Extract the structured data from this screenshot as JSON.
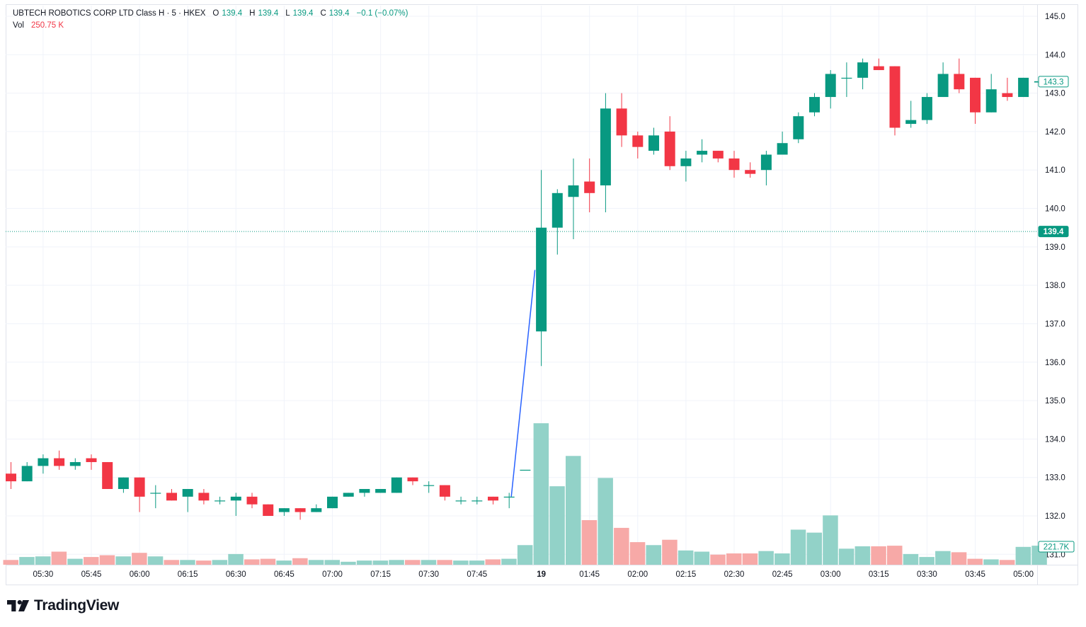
{
  "legend": {
    "symbol": "UBTECH ROBOTICS CORP LTD Class H · 5 · HKEX",
    "o_label": "O",
    "o_value": "139.4",
    "h_label": "H",
    "h_value": "139.4",
    "l_label": "L",
    "l_value": "139.4",
    "c_label": "C",
    "c_value": "139.4",
    "change": "−0.1 (−0.07%)",
    "vol_label": "Vol",
    "vol_value": "250.75 K"
  },
  "brand": {
    "name": "TradingView"
  },
  "colors": {
    "up": "#089981",
    "down": "#f23645",
    "vol_up": "#92d2c8",
    "vol_down": "#f7a9a7",
    "grid": "#f0f3fa",
    "text": "#131722",
    "annotation_line": "#2962ff"
  },
  "chart_data": {
    "type": "candlestick",
    "title": "UBTECH ROBOTICS CORP LTD Class H · 5 · HKEX",
    "interval": "5 min",
    "ylim": [
      130.7,
      145.3
    ],
    "y_ticks": [
      "131.0",
      "132.0",
      "133.0",
      "134.0",
      "135.0",
      "136.0",
      "137.0",
      "138.0",
      "139.0",
      "140.0",
      "141.0",
      "142.0",
      "143.0",
      "144.0",
      "145.0"
    ],
    "x_ticks": [
      {
        "label": "05:30",
        "index": 2
      },
      {
        "label": "05:45",
        "index": 5
      },
      {
        "label": "06:00",
        "index": 8
      },
      {
        "label": "06:15",
        "index": 11
      },
      {
        "label": "06:30",
        "index": 14
      },
      {
        "label": "06:45",
        "index": 17
      },
      {
        "label": "07:00",
        "index": 20
      },
      {
        "label": "07:15",
        "index": 23
      },
      {
        "label": "07:30",
        "index": 26
      },
      {
        "label": "07:45",
        "index": 29
      },
      {
        "label": "19",
        "index": 33
      },
      {
        "label": "01:45",
        "index": 36
      },
      {
        "label": "02:00",
        "index": 39
      },
      {
        "label": "02:15",
        "index": 42
      },
      {
        "label": "02:30",
        "index": 45
      },
      {
        "label": "02:45",
        "index": 48
      },
      {
        "label": "03:00",
        "index": 51
      },
      {
        "label": "03:15",
        "index": 54
      },
      {
        "label": "03:30",
        "index": 57
      },
      {
        "label": "03:45",
        "index": 60
      },
      {
        "label": "05:00",
        "index": 63
      }
    ],
    "candles": [
      {
        "o": 133.1,
        "h": 133.4,
        "l": 132.7,
        "c": 132.9,
        "v": 8
      },
      {
        "o": 132.9,
        "h": 133.4,
        "l": 132.9,
        "c": 133.3,
        "v": 13
      },
      {
        "o": 133.3,
        "h": 133.6,
        "l": 133.1,
        "c": 133.5,
        "v": 14
      },
      {
        "o": 133.5,
        "h": 133.7,
        "l": 133.2,
        "c": 133.3,
        "v": 22
      },
      {
        "o": 133.3,
        "h": 133.5,
        "l": 133.2,
        "c": 133.4,
        "v": 10
      },
      {
        "o": 133.5,
        "h": 133.6,
        "l": 133.2,
        "c": 133.4,
        "v": 13
      },
      {
        "o": 133.4,
        "h": 133.4,
        "l": 132.7,
        "c": 132.7,
        "v": 16
      },
      {
        "o": 132.7,
        "h": 133.0,
        "l": 132.6,
        "c": 133.0,
        "v": 14
      },
      {
        "o": 133.0,
        "h": 133.0,
        "l": 132.1,
        "c": 132.5,
        "v": 20
      },
      {
        "o": 132.6,
        "h": 132.8,
        "l": 132.2,
        "c": 132.6,
        "v": 14
      },
      {
        "o": 132.6,
        "h": 132.7,
        "l": 132.4,
        "c": 132.4,
        "v": 8
      },
      {
        "o": 132.5,
        "h": 132.7,
        "l": 132.1,
        "c": 132.7,
        "v": 8
      },
      {
        "o": 132.6,
        "h": 132.7,
        "l": 132.3,
        "c": 132.4,
        "v": 7
      },
      {
        "o": 132.4,
        "h": 132.5,
        "l": 132.3,
        "c": 132.4,
        "v": 8
      },
      {
        "o": 132.4,
        "h": 132.6,
        "l": 132.0,
        "c": 132.5,
        "v": 18
      },
      {
        "o": 132.5,
        "h": 132.6,
        "l": 132.2,
        "c": 132.3,
        "v": 9
      },
      {
        "o": 132.3,
        "h": 132.3,
        "l": 132.0,
        "c": 132.0,
        "v": 10
      },
      {
        "o": 132.1,
        "h": 132.2,
        "l": 132.0,
        "c": 132.2,
        "v": 7
      },
      {
        "o": 132.2,
        "h": 132.2,
        "l": 131.9,
        "c": 132.1,
        "v": 11
      },
      {
        "o": 132.1,
        "h": 132.3,
        "l": 132.1,
        "c": 132.2,
        "v": 8
      },
      {
        "o": 132.2,
        "h": 132.5,
        "l": 132.2,
        "c": 132.5,
        "v": 8
      },
      {
        "o": 132.5,
        "h": 132.6,
        "l": 132.5,
        "c": 132.6,
        "v": 5
      },
      {
        "o": 132.6,
        "h": 132.7,
        "l": 132.5,
        "c": 132.7,
        "v": 7
      },
      {
        "o": 132.6,
        "h": 132.7,
        "l": 132.6,
        "c": 132.7,
        "v": 7
      },
      {
        "o": 132.6,
        "h": 133.0,
        "l": 132.6,
        "c": 133.0,
        "v": 8
      },
      {
        "o": 133.0,
        "h": 133.0,
        "l": 132.8,
        "c": 132.9,
        "v": 8
      },
      {
        "o": 132.8,
        "h": 132.9,
        "l": 132.6,
        "c": 132.8,
        "v": 8
      },
      {
        "o": 132.8,
        "h": 132.8,
        "l": 132.4,
        "c": 132.5,
        "v": 8
      },
      {
        "o": 132.4,
        "h": 132.5,
        "l": 132.3,
        "c": 132.4,
        "v": 7
      },
      {
        "o": 132.4,
        "h": 132.5,
        "l": 132.3,
        "c": 132.4,
        "v": 7
      },
      {
        "o": 132.5,
        "h": 132.5,
        "l": 132.3,
        "c": 132.4,
        "v": 9
      },
      {
        "o": 132.5,
        "h": 132.6,
        "l": 132.2,
        "c": 132.5,
        "v": 10
      },
      {
        "o": 133.2,
        "h": 133.2,
        "l": 133.2,
        "c": 133.2,
        "v": 33
      },
      {
        "o": 136.8,
        "h": 141.0,
        "l": 135.9,
        "c": 139.5,
        "v": 238
      },
      {
        "o": 139.5,
        "h": 140.5,
        "l": 138.8,
        "c": 140.4,
        "v": 132
      },
      {
        "o": 140.3,
        "h": 141.3,
        "l": 139.2,
        "c": 140.6,
        "v": 183
      },
      {
        "o": 140.7,
        "h": 141.3,
        "l": 139.9,
        "c": 140.4,
        "v": 75
      },
      {
        "o": 140.6,
        "h": 143.0,
        "l": 139.9,
        "c": 142.6,
        "v": 146
      },
      {
        "o": 142.6,
        "h": 143.0,
        "l": 141.6,
        "c": 141.9,
        "v": 62
      },
      {
        "o": 141.9,
        "h": 142.0,
        "l": 141.3,
        "c": 141.6,
        "v": 38
      },
      {
        "o": 141.5,
        "h": 142.1,
        "l": 141.4,
        "c": 141.9,
        "v": 33
      },
      {
        "o": 142.0,
        "h": 142.4,
        "l": 141.0,
        "c": 141.1,
        "v": 42
      },
      {
        "o": 141.1,
        "h": 141.5,
        "l": 140.7,
        "c": 141.3,
        "v": 24
      },
      {
        "o": 141.4,
        "h": 141.8,
        "l": 141.2,
        "c": 141.5,
        "v": 22
      },
      {
        "o": 141.5,
        "h": 141.5,
        "l": 141.2,
        "c": 141.3,
        "v": 17
      },
      {
        "o": 141.3,
        "h": 141.5,
        "l": 140.8,
        "c": 141.0,
        "v": 19
      },
      {
        "o": 141.0,
        "h": 141.2,
        "l": 140.8,
        "c": 140.9,
        "v": 19
      },
      {
        "o": 141.0,
        "h": 141.5,
        "l": 140.6,
        "c": 141.4,
        "v": 23
      },
      {
        "o": 141.4,
        "h": 142.0,
        "l": 141.4,
        "c": 141.7,
        "v": 19
      },
      {
        "o": 141.8,
        "h": 142.5,
        "l": 141.7,
        "c": 142.4,
        "v": 59
      },
      {
        "o": 142.5,
        "h": 143.0,
        "l": 142.4,
        "c": 142.9,
        "v": 54
      },
      {
        "o": 142.9,
        "h": 143.6,
        "l": 142.6,
        "c": 143.5,
        "v": 83
      },
      {
        "o": 143.4,
        "h": 143.8,
        "l": 142.9,
        "c": 143.4,
        "v": 27
      },
      {
        "o": 143.4,
        "h": 143.9,
        "l": 143.1,
        "c": 143.8,
        "v": 31
      },
      {
        "o": 143.7,
        "h": 143.9,
        "l": 143.6,
        "c": 143.6,
        "v": 31
      },
      {
        "o": 143.7,
        "h": 143.7,
        "l": 141.9,
        "c": 142.1,
        "v": 32
      },
      {
        "o": 142.2,
        "h": 142.8,
        "l": 142.1,
        "c": 142.3,
        "v": 18
      },
      {
        "o": 142.3,
        "h": 143.0,
        "l": 142.2,
        "c": 142.9,
        "v": 13
      },
      {
        "o": 142.9,
        "h": 143.8,
        "l": 142.9,
        "c": 143.5,
        "v": 23
      },
      {
        "o": 143.5,
        "h": 143.9,
        "l": 143.0,
        "c": 143.1,
        "v": 21
      },
      {
        "o": 143.4,
        "h": 143.4,
        "l": 142.2,
        "c": 142.5,
        "v": 10
      },
      {
        "o": 142.5,
        "h": 143.5,
        "l": 142.5,
        "c": 143.1,
        "v": 9
      },
      {
        "o": 143.0,
        "h": 143.4,
        "l": 142.8,
        "c": 142.9,
        "v": 8
      },
      {
        "o": 142.9,
        "h": 143.4,
        "l": 142.9,
        "c": 143.4,
        "v": 30
      },
      {
        "o": 143.3,
        "h": 143.3,
        "l": 143.3,
        "c": 143.3,
        "v": 32
      }
    ],
    "volume_markers": [
      {
        "label": "221.7K",
        "value": 221.7,
        "unit": "K"
      }
    ],
    "last_price": "143.3",
    "horizontal_line": {
      "price": 139.4,
      "label": "139.4"
    },
    "annotation_line": {
      "from": {
        "index": 31,
        "price": 132.5
      },
      "to": {
        "index": 33,
        "price": 138.4
      }
    }
  }
}
